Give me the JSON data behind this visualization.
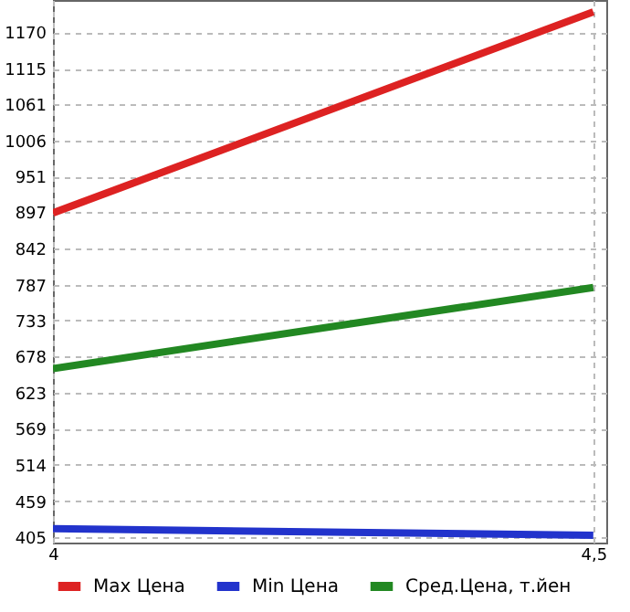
{
  "chart_data": {
    "type": "line",
    "x": [
      4,
      4.5
    ],
    "series": [
      {
        "name": "Max Цена",
        "color": "#dd2222",
        "values": [
          896,
          1201
        ]
      },
      {
        "name": "Min Цена",
        "color": "#2233cc",
        "values": [
          417,
          407
        ]
      },
      {
        "name": "Сред.Цена, т.йен",
        "color": "#228822",
        "values": [
          660,
          783
        ]
      }
    ],
    "xlim": [
      4,
      4.512
    ],
    "xticks": [
      4,
      {
        "value": 4.5,
        "label": "4,5"
      }
    ],
    "ylim": [
      396,
      1219
    ],
    "yticks": [
      405,
      459,
      514,
      569,
      623,
      678,
      733,
      787,
      842,
      897,
      951,
      1006,
      1061,
      1115,
      1170
    ],
    "grid": true,
    "legend": "bottom",
    "marker": "none",
    "line_style": "solid"
  }
}
